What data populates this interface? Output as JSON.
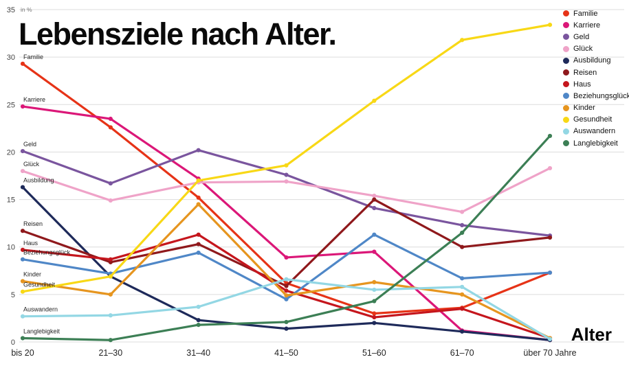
{
  "title": "Lebensziele nach Alter.",
  "chart_data": {
    "type": "line",
    "title": "Lebensziele nach Alter.",
    "x_axis_title": "Alter",
    "y_unit_label": "in %",
    "ylim": [
      0,
      35
    ],
    "y_ticks": [
      0,
      5,
      10,
      15,
      20,
      25,
      30,
      35
    ],
    "grid": true,
    "legend_position": "top-right",
    "categories": [
      "bis 20",
      "21–30",
      "31–40",
      "41–50",
      "51–60",
      "61–70",
      "über 70 Jahre"
    ],
    "series": [
      {
        "name": "Familie",
        "color": "#e63317",
        "values": [
          29.3,
          22.6,
          15.2,
          6.2,
          3.0,
          3.6,
          7.3
        ]
      },
      {
        "name": "Karriere",
        "color": "#db1778",
        "values": [
          24.8,
          23.5,
          17.2,
          8.9,
          9.5,
          1.2,
          0.2
        ]
      },
      {
        "name": "Geld",
        "color": "#7a559e",
        "values": [
          20.1,
          16.7,
          20.2,
          17.6,
          14.1,
          12.3,
          11.2
        ]
      },
      {
        "name": "Glück",
        "color": "#efa3c8",
        "values": [
          18.0,
          14.9,
          16.8,
          16.9,
          15.4,
          13.7,
          18.3
        ]
      },
      {
        "name": "Ausbildung",
        "color": "#1e2a5a",
        "values": [
          16.3,
          6.9,
          2.3,
          1.4,
          2.0,
          1.1,
          0.2
        ]
      },
      {
        "name": "Reisen",
        "color": "#8f191c",
        "values": [
          11.7,
          8.4,
          10.3,
          5.9,
          15.0,
          10.0,
          11.0
        ]
      },
      {
        "name": "Haus",
        "color": "#c5161d",
        "values": [
          9.7,
          8.7,
          11.3,
          5.4,
          2.6,
          3.5,
          0.4
        ]
      },
      {
        "name": "Beziehungsglück",
        "color": "#4f87c7",
        "values": [
          8.7,
          7.2,
          9.4,
          4.5,
          11.3,
          6.7,
          7.3
        ]
      },
      {
        "name": "Kinder",
        "color": "#e6951f",
        "values": [
          6.4,
          5.0,
          14.5,
          4.9,
          6.3,
          5.0,
          0.4
        ]
      },
      {
        "name": "Gesundheit",
        "color": "#f8d816",
        "values": [
          5.3,
          6.9,
          17.0,
          18.6,
          25.4,
          31.8,
          33.4
        ]
      },
      {
        "name": "Auswandern",
        "color": "#93d7e4",
        "values": [
          2.7,
          2.8,
          3.7,
          6.6,
          5.5,
          5.8,
          0.3
        ]
      },
      {
        "name": "Langlebigkeit",
        "color": "#3c7f55",
        "values": [
          0.4,
          0.2,
          1.8,
          2.1,
          4.3,
          11.5,
          21.7
        ]
      }
    ]
  }
}
